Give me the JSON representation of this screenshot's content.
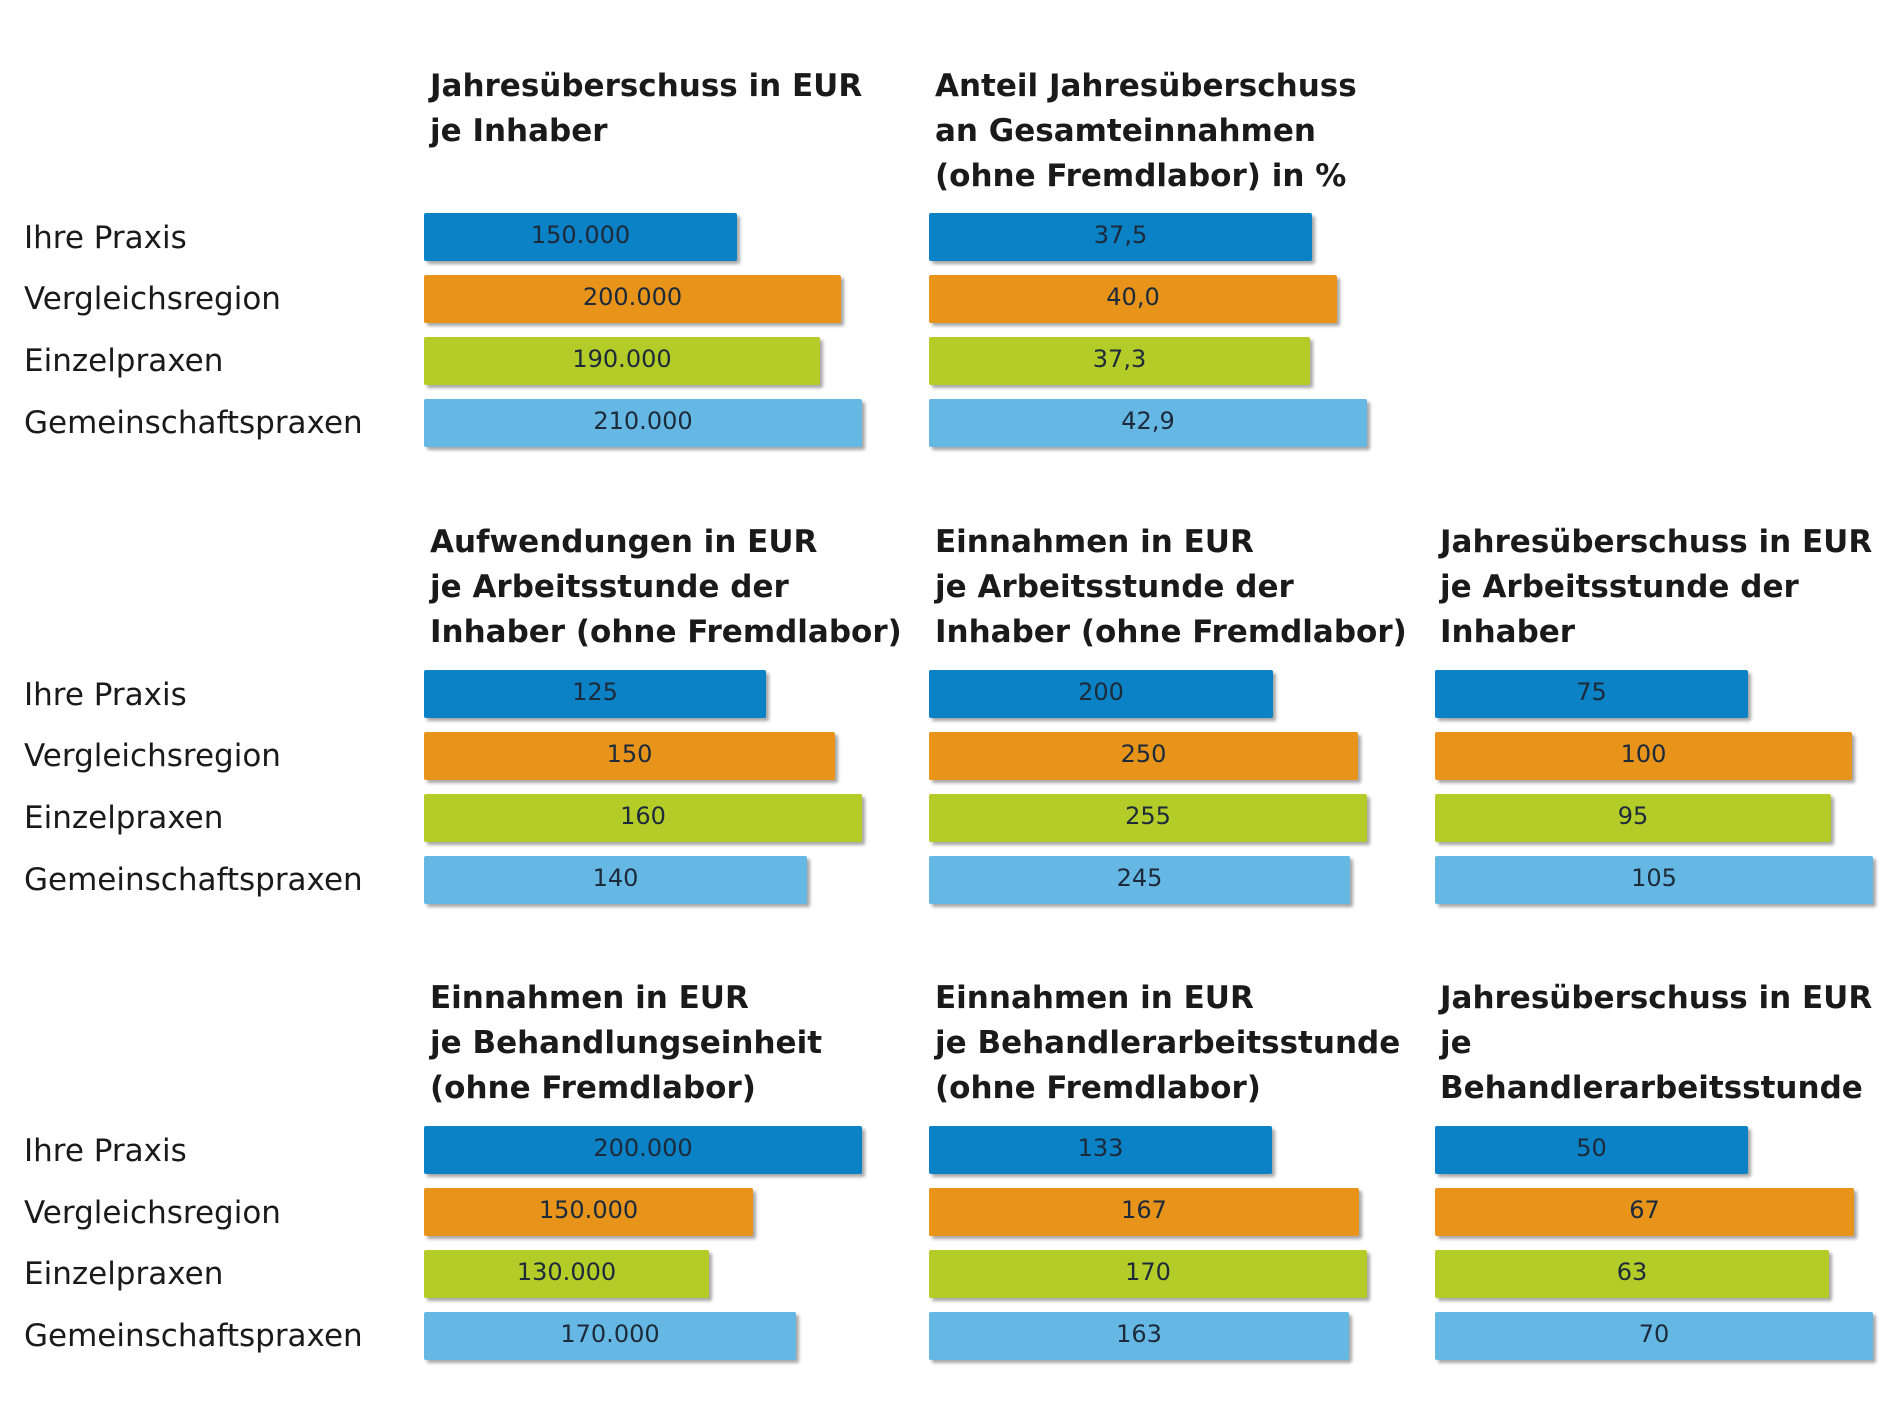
{
  "row_labels": [
    "Ihre Praxis",
    "Vergleichsregion",
    "Einzelpraxen",
    "Gemeinschaftspraxen"
  ],
  "colors": [
    "#0a82c5",
    "#e8941a",
    "#b3cc28",
    "#66b8e4"
  ],
  "chart_data": [
    {
      "type": "bar",
      "title": "Jahresüberschuss in EUR\nje Inhaber",
      "categories": [
        "Ihre Praxis",
        "Vergleichsregion",
        "Einzelpraxen",
        "Gemeinschaftspraxen"
      ],
      "values": [
        150000,
        200000,
        190000,
        210000
      ],
      "labels": [
        "150.000",
        "200.000",
        "190.000",
        "210.000"
      ]
    },
    {
      "type": "bar",
      "title": "Anteil Jahresüberschuss\nan Gesamteinnahmen\n(ohne Fremdlabor) in %",
      "categories": [
        "Ihre Praxis",
        "Vergleichsregion",
        "Einzelpraxen",
        "Gemeinschaftspraxen"
      ],
      "values": [
        37.5,
        40.0,
        37.3,
        42.9
      ],
      "labels": [
        "37,5",
        "40,0",
        "37,3",
        "42,9"
      ]
    },
    {
      "type": "bar",
      "title": "Aufwendungen in EUR\nje Arbeitsstunde der\nInhaber (ohne Fremdlabor)",
      "categories": [
        "Ihre Praxis",
        "Vergleichsregion",
        "Einzelpraxen",
        "Gemeinschaftspraxen"
      ],
      "values": [
        125,
        150,
        160,
        140
      ],
      "labels": [
        "125",
        "150",
        "160",
        "140"
      ]
    },
    {
      "type": "bar",
      "title": "Einnahmen in EUR\nje Arbeitsstunde der\nInhaber (ohne Fremdlabor)",
      "categories": [
        "Ihre Praxis",
        "Vergleichsregion",
        "Einzelpraxen",
        "Gemeinschaftspraxen"
      ],
      "values": [
        200,
        250,
        255,
        245
      ],
      "labels": [
        "200",
        "250",
        "255",
        "245"
      ]
    },
    {
      "type": "bar",
      "title": "Jahresüberschuss in EUR\nje Arbeitsstunde der\nInhaber",
      "categories": [
        "Ihre Praxis",
        "Vergleichsregion",
        "Einzelpraxen",
        "Gemeinschaftspraxen"
      ],
      "values": [
        75,
        100,
        95,
        105
      ],
      "labels": [
        "75",
        "100",
        "95",
        "105"
      ]
    },
    {
      "type": "bar",
      "title": "Einnahmen in EUR\nje Behandlungseinheit\n(ohne Fremdlabor)",
      "categories": [
        "Ihre Praxis",
        "Vergleichsregion",
        "Einzelpraxen",
        "Gemeinschaftspraxen"
      ],
      "values": [
        200000,
        150000,
        130000,
        170000
      ],
      "labels": [
        "200.000",
        "150.000",
        "130.000",
        "170.000"
      ]
    },
    {
      "type": "bar",
      "title": "Einnahmen in EUR\nje Behandlerarbeitsstunde\n(ohne Fremdlabor)",
      "categories": [
        "Ihre Praxis",
        "Vergleichsregion",
        "Einzelpraxen",
        "Gemeinschaftspraxen"
      ],
      "values": [
        133,
        167,
        170,
        163
      ],
      "labels": [
        "133",
        "167",
        "170",
        "163"
      ]
    },
    {
      "type": "bar",
      "title": "Jahresüberschuss in EUR\nje Behandlerarbeitsstunde",
      "categories": [
        "Ihre Praxis",
        "Vergleichsregion",
        "Einzelpraxen",
        "Gemeinschaftspraxen"
      ],
      "values": [
        50,
        67,
        63,
        70
      ],
      "labels": [
        "50",
        "67",
        "63",
        "70"
      ]
    }
  ]
}
